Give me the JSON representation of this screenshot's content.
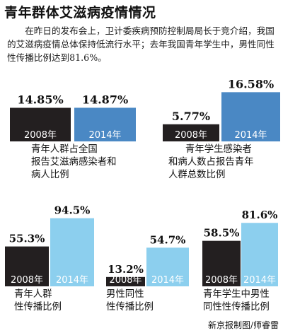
{
  "title": "青年群体艾滋病疫情情况",
  "intro": "在昨日的发布会上，卫计委疾病预防控制局局长于竞介绍，我国的艾滋病疫情总体保持低流行水平；去年我国青年学生中，男性同性性传播比例达到81.6%。",
  "credit": "新京报制图/师睿雷",
  "colors": {
    "y2008": "#231f20",
    "y2014_dark": "#4a88c4",
    "y2014_light": "#8ccfee"
  },
  "chart_data": [
    {
      "type": "bar",
      "categories": [
        "2008年",
        "2014年"
      ],
      "values": [
        14.85,
        14.87
      ],
      "value_labels": [
        "14.85%",
        "14.87%"
      ],
      "caption": [
        "青年人群占全国",
        "报告艾滋病感染者和",
        "病人比例"
      ]
    },
    {
      "type": "bar",
      "categories": [
        "2008年",
        "2014年"
      ],
      "values": [
        5.77,
        16.58
      ],
      "value_labels": [
        "5.77%",
        "16.58%"
      ],
      "caption": [
        "青年学生感染者",
        "和病人数占报告青年",
        "人群总数比例"
      ]
    },
    {
      "type": "bar",
      "categories": [
        "2008年",
        "2014年"
      ],
      "values": [
        55.3,
        94.5
      ],
      "value_labels": [
        "55.3%",
        "94.5%"
      ],
      "caption": [
        "青年人群",
        "性传播比例"
      ]
    },
    {
      "type": "bar",
      "categories": [
        "2008年",
        "2014年"
      ],
      "values": [
        13.2,
        54.7
      ],
      "value_labels": [
        "13.2%",
        "54.7%"
      ],
      "caption": [
        "男性同性",
        "性传播比例"
      ]
    },
    {
      "type": "bar",
      "categories": [
        "2008年",
        "2014年"
      ],
      "values": [
        58.5,
        81.6
      ],
      "value_labels": [
        "58.5%",
        "81.6%"
      ],
      "caption": [
        "青年学生中男性",
        "同性性传播比例"
      ]
    }
  ]
}
